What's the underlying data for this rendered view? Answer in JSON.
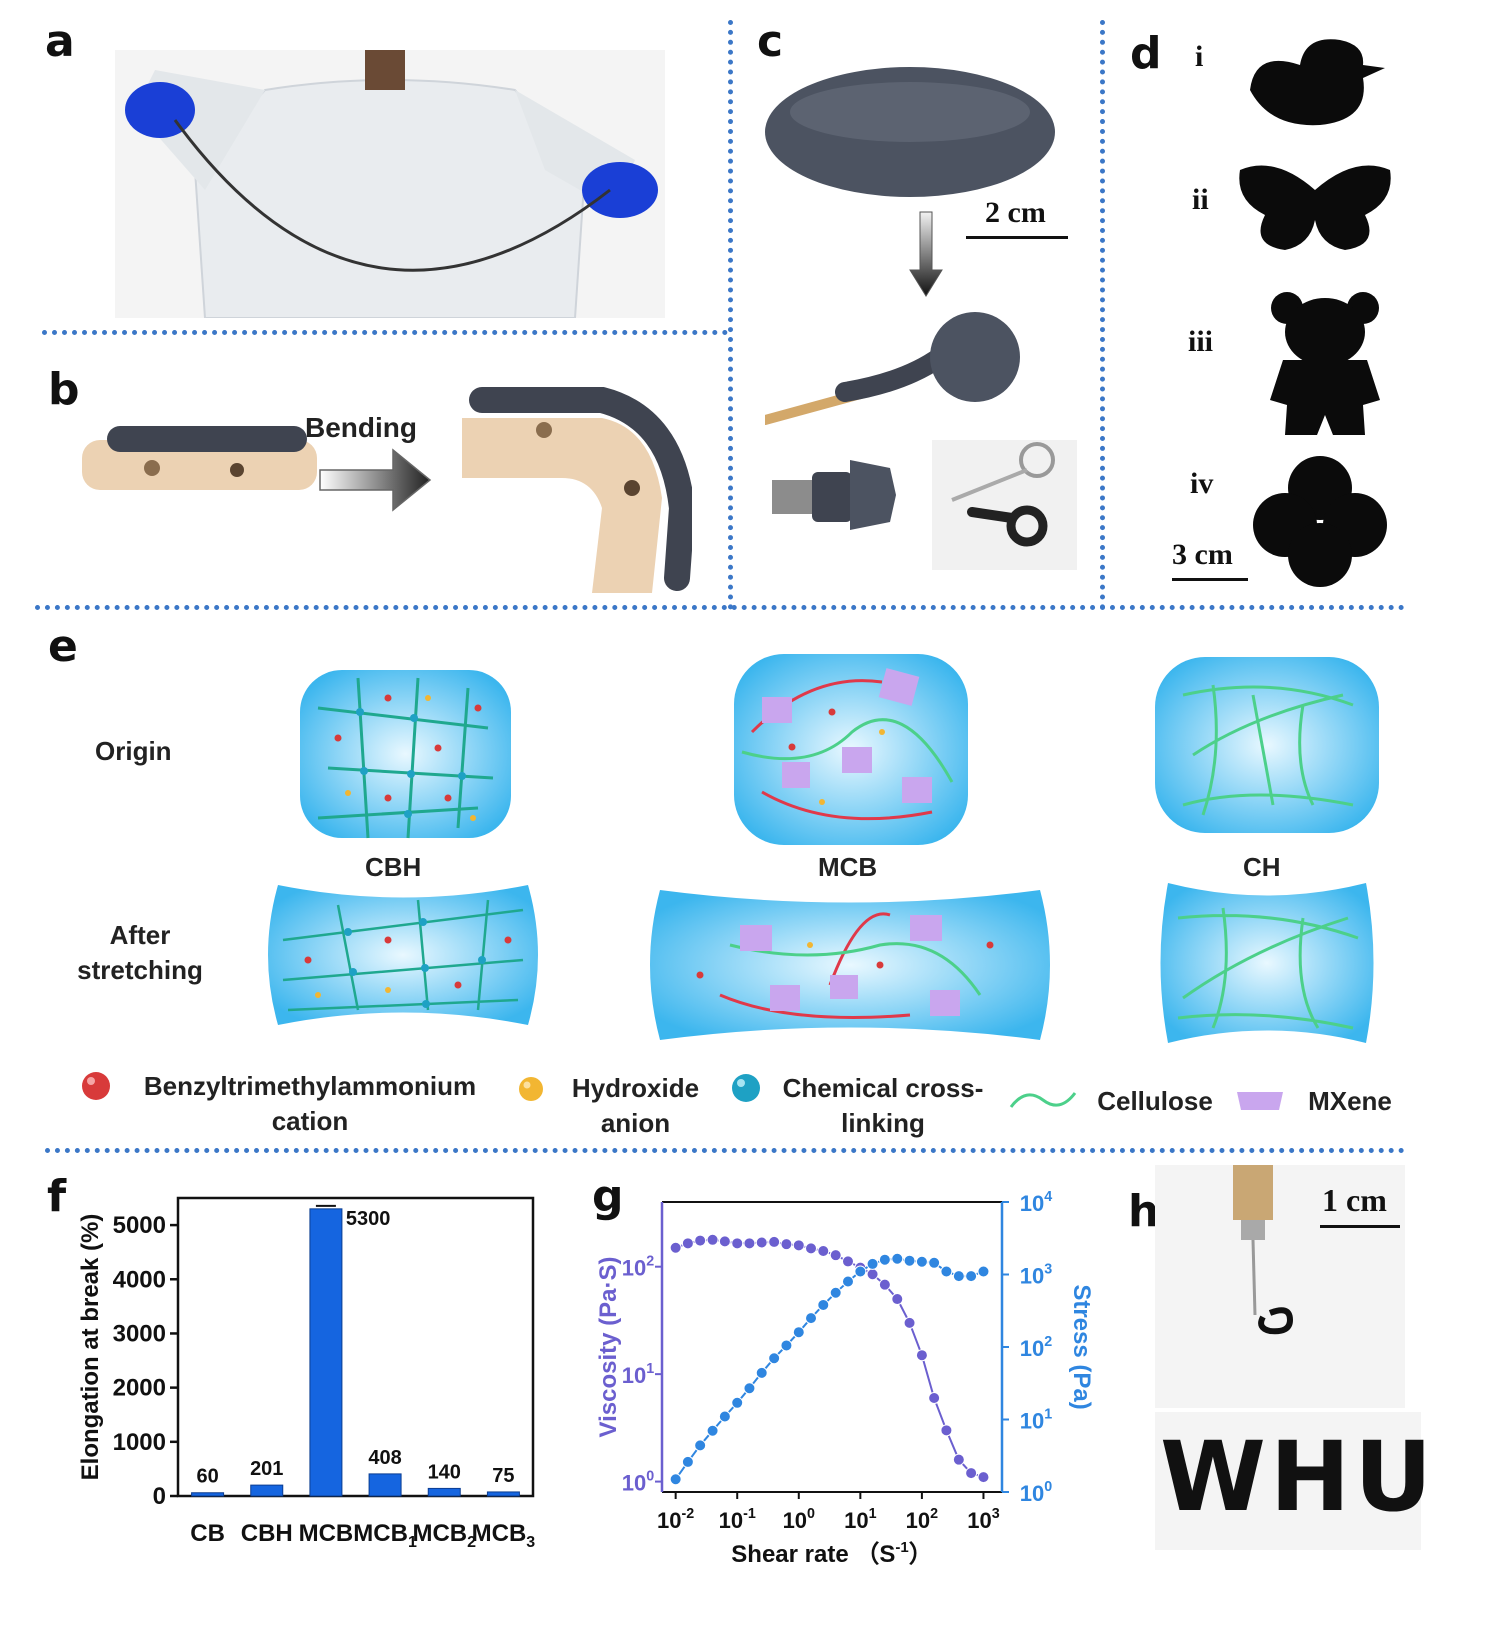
{
  "panels": {
    "a": "a",
    "b": "b",
    "c": "c",
    "d": "d",
    "e": "e",
    "f": "f",
    "g": "g",
    "h": "h"
  },
  "b": {
    "arrow_label": "Bending"
  },
  "c": {
    "scale_bar": "2 cm"
  },
  "d": {
    "items": [
      "i",
      "ii",
      "iii",
      "iv"
    ],
    "scale_bar": "3 cm"
  },
  "e": {
    "row_labels": {
      "origin": "Origin",
      "after_1": "After",
      "after_2": "stretching"
    },
    "columns": [
      "CBH",
      "MCB",
      "CH"
    ],
    "legend": {
      "cation_1": "Benzyltrimethylammonium",
      "cation_2": "cation",
      "anion_1": "Hydroxide",
      "anion_2": "anion",
      "cross_1": "Chemical cross-",
      "cross_2": "linking",
      "cellulose": "Cellulose",
      "mxene": "MXene"
    },
    "colors": {
      "cation": "#d83a3a",
      "anion": "#f2b632",
      "crosslink": "#1ea1c4",
      "cellulose": "#4cd08a",
      "mxene": "#c9a6ee",
      "gel": "#5cc6f2"
    }
  },
  "h": {
    "scale_bar": "1 cm",
    "written_text": "WHU"
  },
  "chart_data": [
    {
      "panel": "f",
      "type": "bar",
      "categories": [
        "CB",
        "CBH",
        "MCB",
        "MCB1",
        "MCB2",
        "MCB3"
      ],
      "category_labels": [
        {
          "base": "CB",
          "sub": ""
        },
        {
          "base": "CBH",
          "sub": ""
        },
        {
          "base": "MCB",
          "sub": ""
        },
        {
          "base": "MCB",
          "sub": "1"
        },
        {
          "base": "MCB",
          "sub": "2"
        },
        {
          "base": "MCB",
          "sub": "3"
        }
      ],
      "values": [
        60,
        201,
        5300,
        408,
        140,
        75
      ],
      "data_labels": [
        "60",
        "201",
        "5300",
        "408",
        "140",
        "75"
      ],
      "ylabel": "Elongation at break (%)",
      "ylim": [
        0,
        5500
      ],
      "yticks": [
        0,
        1000,
        2000,
        3000,
        4000,
        5000
      ],
      "bar_color": "#1565e0"
    },
    {
      "panel": "g",
      "type": "line",
      "xlabel": "Shear rate （S",
      "xlabel_sup": "-1",
      "xlabel_end": "）",
      "x_scale": "log",
      "xlim": [
        0.006,
        2000
      ],
      "x_ticks": [
        {
          "base": "10",
          "exp": "-2"
        },
        {
          "base": "10",
          "exp": "-1"
        },
        {
          "base": "10",
          "exp": "0"
        },
        {
          "base": "10",
          "exp": "1"
        },
        {
          "base": "10",
          "exp": "2"
        },
        {
          "base": "10",
          "exp": "3"
        }
      ],
      "left_axis": {
        "label": "Viscosity (Pa·S)",
        "scale": "log",
        "lim": [
          0.8,
          400
        ],
        "ticks": [
          {
            "base": "10",
            "exp": "0"
          },
          {
            "base": "10",
            "exp": "1"
          },
          {
            "base": "10",
            "exp": "2"
          }
        ],
        "color": "#6b5fcf"
      },
      "right_axis": {
        "label": "Stress (Pa)",
        "scale": "log",
        "lim": [
          1,
          10000
        ],
        "ticks": [
          {
            "base": "10",
            "exp": "0"
          },
          {
            "base": "10",
            "exp": "1"
          },
          {
            "base": "10",
            "exp": "2"
          },
          {
            "base": "10",
            "exp": "3"
          },
          {
            "base": "10",
            "exp": "4"
          }
        ],
        "color": "#2f86e0"
      },
      "series": [
        {
          "axis": "left",
          "color": "#6b5fcf",
          "x": [
            0.01,
            0.0158,
            0.025,
            0.0398,
            0.063,
            0.1,
            0.158,
            0.25,
            0.398,
            0.63,
            1,
            1.58,
            2.5,
            3.98,
            6.3,
            10,
            15.8,
            25,
            39.8,
            63,
            100,
            158,
            250,
            398,
            630,
            1000
          ],
          "y": [
            150,
            165,
            175,
            178,
            172,
            165,
            165,
            168,
            170,
            162,
            158,
            148,
            140,
            128,
            112,
            98,
            85,
            68,
            50,
            30,
            15,
            6,
            3,
            1.6,
            1.2,
            1.1
          ]
        },
        {
          "axis": "right",
          "color": "#2f86e0",
          "x": [
            0.01,
            0.0158,
            0.025,
            0.0398,
            0.063,
            0.1,
            0.158,
            0.25,
            0.398,
            0.63,
            1,
            1.58,
            2.5,
            3.98,
            6.3,
            10,
            15.8,
            25,
            39.8,
            63,
            100,
            158,
            250,
            398,
            630,
            1000
          ],
          "y": [
            1.5,
            2.6,
            4.4,
            7,
            11,
            17,
            27,
            44,
            70,
            105,
            160,
            250,
            380,
            560,
            800,
            1100,
            1400,
            1600,
            1650,
            1550,
            1500,
            1450,
            1100,
            950,
            950,
            1100
          ]
        }
      ]
    }
  ]
}
